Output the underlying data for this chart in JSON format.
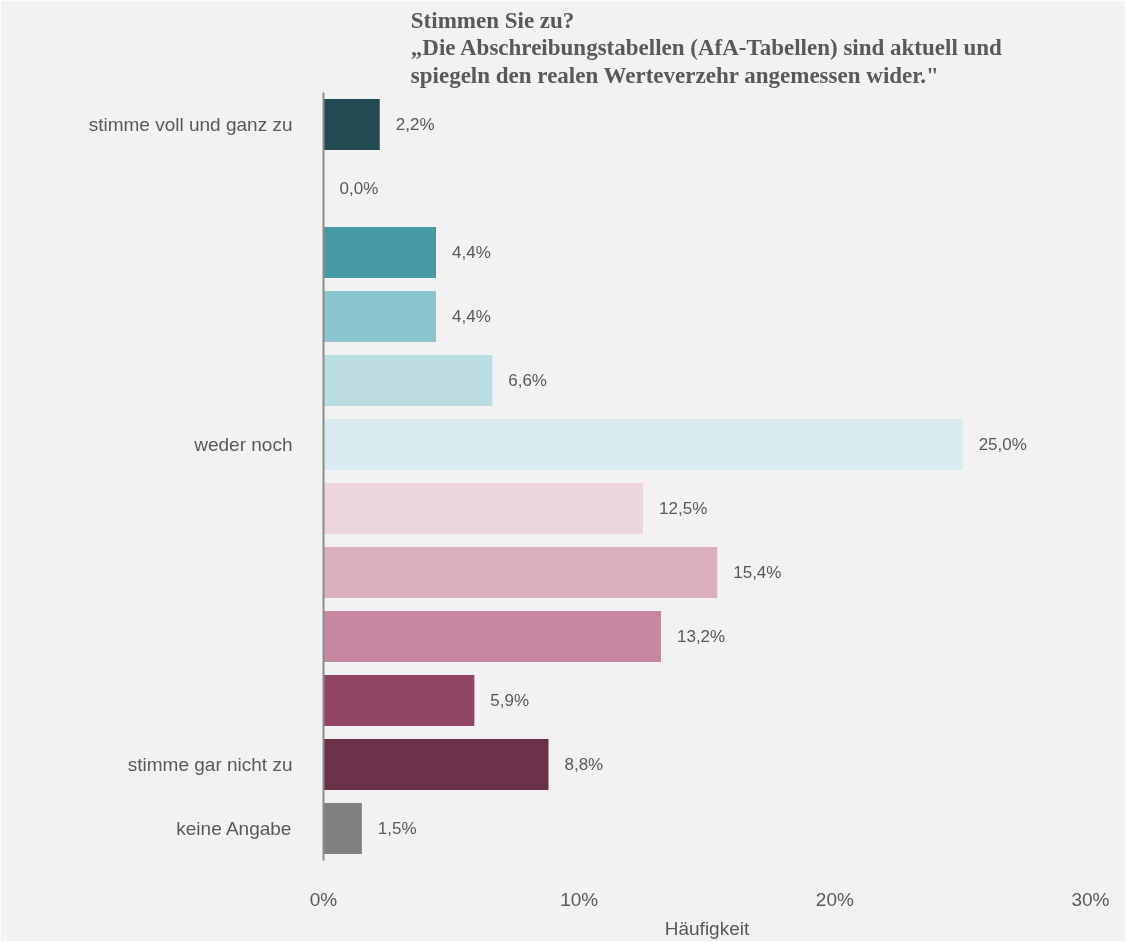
{
  "chart_data": {
    "type": "bar",
    "orientation": "horizontal",
    "title": "Stimmen Sie zu?\n„Die Abschreibungstabellen (AfA-Tabellen) sind aktuell und\nspiegeln den realen Werteverzehr angemessen wider.\"",
    "xlabel": "Häufigkeit",
    "categories": [
      "stimme voll und ganz zu",
      null,
      null,
      null,
      null,
      "weder noch",
      null,
      null,
      null,
      null,
      "stimme gar nicht zu",
      "keine Angabe"
    ],
    "values": [
      2.2,
      0.0,
      4.4,
      4.4,
      6.6,
      25.0,
      12.5,
      15.4,
      13.2,
      5.9,
      8.8,
      1.5
    ],
    "colors": [
      "#234b53",
      "#2f6e78",
      "#459aa3",
      "#8bc6ce",
      "#b9dde1",
      "#daecef",
      "#ecd5dd",
      "#dbafc0",
      "#c787a0",
      "#914463",
      "#6b3149",
      "#808080"
    ],
    "value_labels": [
      "2,2%",
      "0,0%",
      "4,4%",
      "4,4%",
      "6,6%",
      "25,0%",
      "12,5%",
      "15,4%",
      "13,2%",
      "5,9%",
      "8,8%",
      "1,5%"
    ],
    "xlim": [
      0,
      30
    ],
    "xticks": [
      {
        "value": 0,
        "label": "0%"
      },
      {
        "value": 10,
        "label": "10%"
      },
      {
        "value": 20,
        "label": "20%"
      },
      {
        "value": 30,
        "label": "30%"
      }
    ],
    "grid": false
  }
}
